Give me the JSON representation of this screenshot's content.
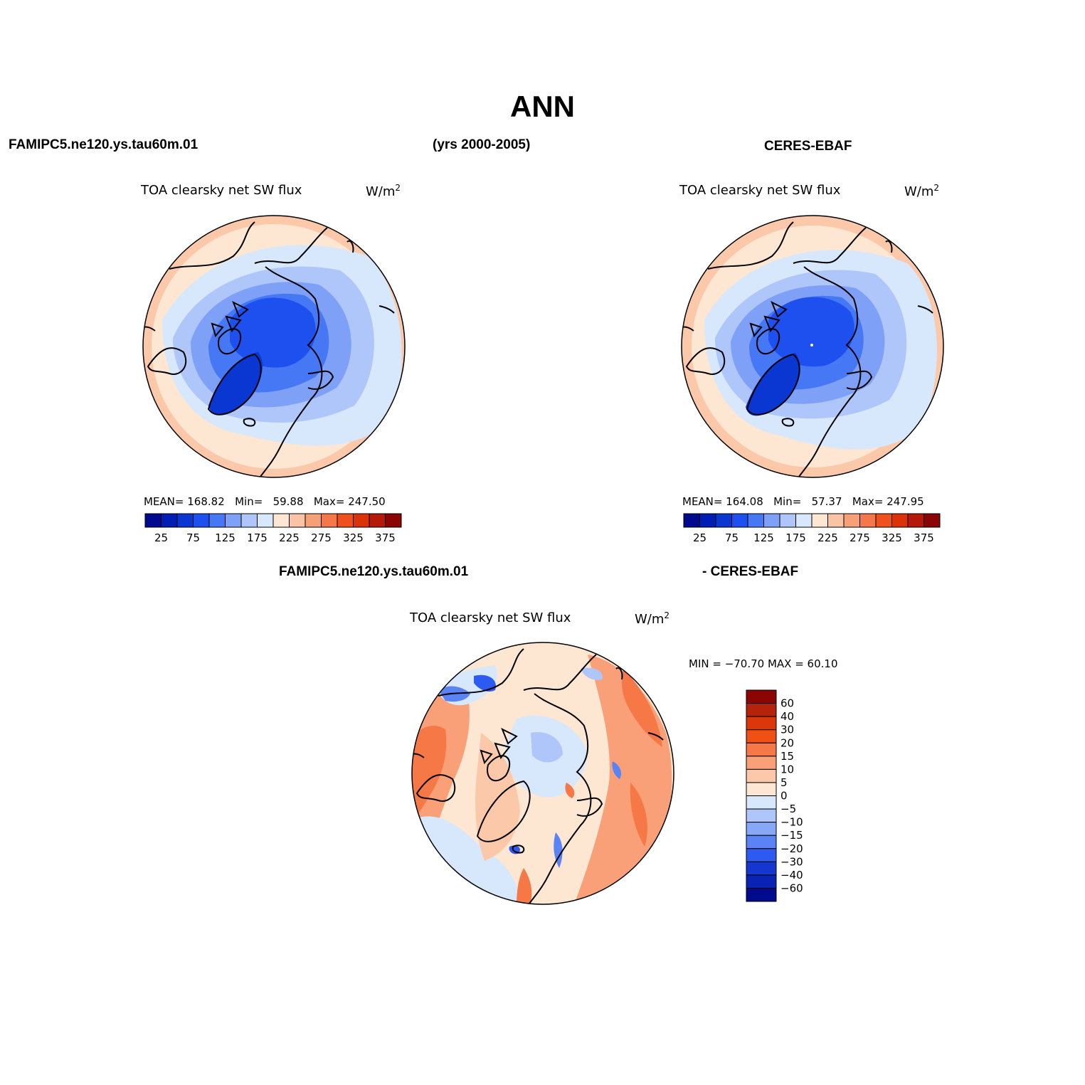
{
  "main_title": "ANN",
  "header": {
    "left": "FAMIPC5.ne120.ys.tau60m.01",
    "center": "(yrs 2000-2005)",
    "right": "CERES-EBAF"
  },
  "panels": [
    {
      "title": "TOA clearsky net SW flux",
      "units_base": "W/m",
      "units_exp": "2",
      "stats": {
        "mean_label": "MEAN=",
        "mean": "168.82",
        "min_label": "Min=",
        "min": "59.88",
        "max_label": "Max=",
        "max": "247.50"
      }
    },
    {
      "title": "TOA clearsky net SW flux",
      "units_base": "W/m",
      "units_exp": "2",
      "stats": {
        "mean_label": "MEAN=",
        "mean": "164.08",
        "min_label": "Min=",
        "min": "57.37",
        "max_label": "Max=",
        "max": "247.95"
      }
    },
    {
      "title": "TOA clearsky net SW flux",
      "units_base": "W/m",
      "units_exp": "2",
      "minmax": "MIN = −70.70 MAX =  60.10"
    }
  ],
  "diff_header": {
    "left": "FAMIPC5.ne120.ys.tau60m.01",
    "right": "- CERES-EBAF"
  },
  "colorbar_abs": {
    "colors": [
      "#000a8c",
      "#001eb4",
      "#0a37d2",
      "#1e50f0",
      "#4678f5",
      "#7ea0f7",
      "#afc6fa",
      "#d7e8fc",
      "#fde6d2",
      "#fac3a5",
      "#f6a078",
      "#f5784b",
      "#f0501e",
      "#dc320a",
      "#b4190a",
      "#8c0505"
    ],
    "labels": [
      "25",
      "75",
      "125",
      "175",
      "225",
      "275",
      "325",
      "375"
    ]
  },
  "colorbar_diff": {
    "colors": [
      "#8c0505",
      "#b4230a",
      "#dc370a",
      "#f05014",
      "#f57846",
      "#f9a078",
      "#fcc8aa",
      "#fde6d2",
      "#d7e8fc",
      "#afc6fa",
      "#87a8f7",
      "#5a84f5",
      "#2d5af0",
      "#1437d2",
      "#0a23b4",
      "#000a8c"
    ],
    "labels": [
      "60",
      "40",
      "30",
      "20",
      "15",
      "10",
      "5",
      "0",
      "−5",
      "−10",
      "−15",
      "−20",
      "−30",
      "−40",
      "−60"
    ]
  },
  "map_colors": {
    "ocean_outer": "#fcc8aa",
    "ocean_mid": "#fde6d2",
    "light_blue": "#d7e8fc",
    "blue1": "#afc6fa",
    "blue2": "#7ea0f7",
    "blue3": "#4678f5",
    "blue4": "#1e50f0",
    "blue5": "#0a37d2",
    "diff_base": "#fde6d2",
    "diff_orange": "#f57846",
    "diff_salmon": "#f9a078",
    "diff_peach": "#fcc8aa"
  }
}
